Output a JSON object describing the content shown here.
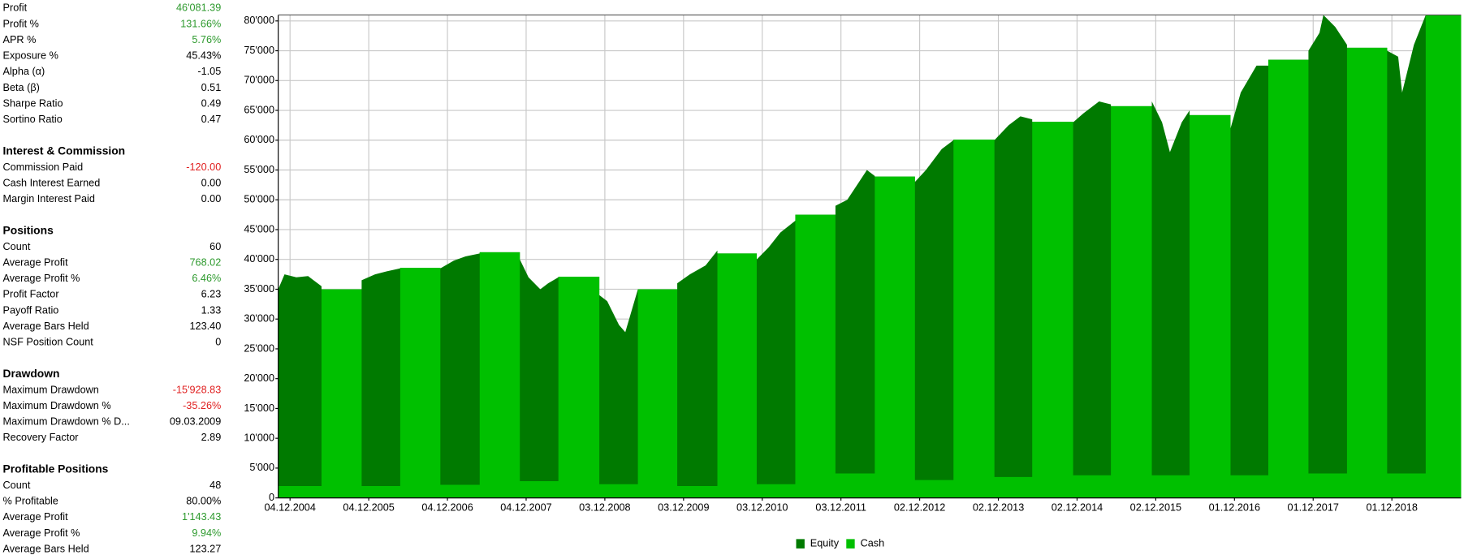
{
  "panel": {
    "sections": [
      {
        "rows": [
          {
            "label": "Profit",
            "value": "46'081.39",
            "color": "#2e9a2e"
          },
          {
            "label": "Profit %",
            "value": "131.66%",
            "color": "#2e9a2e"
          },
          {
            "label": "APR %",
            "value": "5.76%",
            "color": "#2e9a2e"
          },
          {
            "label": "Exposure %",
            "value": "45.43%",
            "color": "#000000"
          },
          {
            "label": "Alpha (α)",
            "value": "-1.05",
            "color": "#000000"
          },
          {
            "label": "Beta (β)",
            "value": "0.51",
            "color": "#000000"
          },
          {
            "label": "Sharpe Ratio",
            "value": "0.49",
            "color": "#000000"
          },
          {
            "label": "Sortino Ratio",
            "value": "0.47",
            "color": "#000000"
          }
        ]
      },
      {
        "title": "Interest & Commission",
        "rows": [
          {
            "label": "Commission Paid",
            "value": "-120.00",
            "color": "#e02020"
          },
          {
            "label": "Cash Interest Earned",
            "value": "0.00",
            "color": "#000000"
          },
          {
            "label": "Margin Interest Paid",
            "value": "0.00",
            "color": "#000000"
          }
        ]
      },
      {
        "title": "Positions",
        "rows": [
          {
            "label": "Count",
            "value": "60",
            "color": "#000000"
          },
          {
            "label": "Average Profit",
            "value": "768.02",
            "color": "#2e9a2e"
          },
          {
            "label": "Average Profit %",
            "value": "6.46%",
            "color": "#2e9a2e"
          },
          {
            "label": "Profit Factor",
            "value": "6.23",
            "color": "#000000"
          },
          {
            "label": "Payoff Ratio",
            "value": "1.33",
            "color": "#000000"
          },
          {
            "label": "Average Bars Held",
            "value": "123.40",
            "color": "#000000"
          },
          {
            "label": "NSF Position Count",
            "value": "0",
            "color": "#000000"
          }
        ]
      },
      {
        "title": "Drawdown",
        "rows": [
          {
            "label": "Maximum Drawdown",
            "value": "-15'928.83",
            "color": "#e02020"
          },
          {
            "label": "Maximum Drawdown %",
            "value": "-35.26%",
            "color": "#e02020"
          },
          {
            "label": "Maximum Drawdown % D...",
            "value": "09.03.2009",
            "color": "#000000"
          },
          {
            "label": "Recovery Factor",
            "value": "2.89",
            "color": "#000000"
          }
        ]
      },
      {
        "title": "Profitable Positions",
        "rows": [
          {
            "label": "Count",
            "value": "48",
            "color": "#000000"
          },
          {
            "label": "% Profitable",
            "value": "80.00%",
            "color": "#000000"
          },
          {
            "label": "Average Profit",
            "value": "1'143.43",
            "color": "#2e9a2e"
          },
          {
            "label": "Average Profit %",
            "value": "9.94%",
            "color": "#2e9a2e"
          },
          {
            "label": "Average Bars Held",
            "value": "123.27",
            "color": "#000000"
          }
        ]
      }
    ]
  },
  "chart_data": {
    "type": "area",
    "grid": true,
    "xlim": [
      2004.77,
      2019.8
    ],
    "ylim": [
      0,
      81000
    ],
    "yticks": [
      {
        "value": 0,
        "label": "0"
      },
      {
        "value": 5000,
        "label": "5'000"
      },
      {
        "value": 10000,
        "label": "10'000"
      },
      {
        "value": 15000,
        "label": "15'000"
      },
      {
        "value": 20000,
        "label": "20'000"
      },
      {
        "value": 25000,
        "label": "25'000"
      },
      {
        "value": 30000,
        "label": "30'000"
      },
      {
        "value": 35000,
        "label": "35'000"
      },
      {
        "value": 40000,
        "label": "40'000"
      },
      {
        "value": 45000,
        "label": "45'000"
      },
      {
        "value": 50000,
        "label": "50'000"
      },
      {
        "value": 55000,
        "label": "55'000"
      },
      {
        "value": 60000,
        "label": "60'000"
      },
      {
        "value": 65000,
        "label": "65'000"
      },
      {
        "value": 70000,
        "label": "70'000"
      },
      {
        "value": 75000,
        "label": "75'000"
      },
      {
        "value": 80000,
        "label": "80'000"
      }
    ],
    "xticks": [
      {
        "value": 2004.92,
        "label": "04.12.2004"
      },
      {
        "value": 2005.92,
        "label": "04.12.2005"
      },
      {
        "value": 2006.92,
        "label": "04.12.2006"
      },
      {
        "value": 2007.92,
        "label": "04.12.2007"
      },
      {
        "value": 2008.92,
        "label": "03.12.2008"
      },
      {
        "value": 2009.92,
        "label": "03.12.2009"
      },
      {
        "value": 2010.92,
        "label": "03.12.2010"
      },
      {
        "value": 2011.92,
        "label": "03.12.2011"
      },
      {
        "value": 2012.92,
        "label": "02.12.2012"
      },
      {
        "value": 2013.92,
        "label": "02.12.2013"
      },
      {
        "value": 2014.92,
        "label": "02.12.2014"
      },
      {
        "value": 2015.92,
        "label": "02.12.2015"
      },
      {
        "value": 2016.92,
        "label": "01.12.2016"
      },
      {
        "value": 2017.92,
        "label": "01.12.2017"
      },
      {
        "value": 2018.92,
        "label": "01.12.2018"
      }
    ],
    "x": [
      2004.77,
      2004.85,
      2005.0,
      2005.15,
      2005.32,
      2005.32,
      2005.83,
      2005.83,
      2006.0,
      2006.15,
      2006.32,
      2006.32,
      2006.83,
      2006.83,
      2007.0,
      2007.15,
      2007.33,
      2007.33,
      2007.84,
      2007.84,
      2007.95,
      2008.1,
      2008.2,
      2008.33,
      2008.33,
      2008.85,
      2008.85,
      2008.95,
      2009.1,
      2009.18,
      2009.34,
      2009.34,
      2009.84,
      2009.84,
      2010.0,
      2010.2,
      2010.35,
      2010.35,
      2010.85,
      2010.85,
      2011.0,
      2011.15,
      2011.34,
      2011.34,
      2011.85,
      2011.85,
      2012.0,
      2012.15,
      2012.25,
      2012.35,
      2012.35,
      2012.86,
      2012.86,
      2013.0,
      2013.2,
      2013.35,
      2013.35,
      2013.87,
      2013.87,
      2014.05,
      2014.2,
      2014.35,
      2014.35,
      2014.87,
      2014.87,
      2015.0,
      2015.2,
      2015.35,
      2015.35,
      2015.87,
      2015.87,
      2016.0,
      2016.1,
      2016.25,
      2016.35,
      2016.35,
      2016.87,
      2016.87,
      2017.0,
      2017.2,
      2017.35,
      2017.35,
      2017.86,
      2017.86,
      2018.0,
      2018.05,
      2018.2,
      2018.35,
      2018.35,
      2018.86,
      2018.86,
      2019.0,
      2019.05,
      2019.2,
      2019.35,
      2019.35,
      2019.8
    ],
    "series": [
      {
        "name": "Equity",
        "color": "#007a00",
        "values": [
          35000,
          37500,
          37000,
          37200,
          35500,
          35000,
          35000,
          36500,
          37500,
          38000,
          38500,
          38600,
          38600,
          38500,
          39800,
          40500,
          41000,
          41200,
          41200,
          40000,
          37000,
          35000,
          36000,
          37000,
          37100,
          37100,
          34000,
          33000,
          29000,
          27800,
          35000,
          35000,
          35000,
          36000,
          37500,
          39000,
          41500,
          41000,
          41000,
          40000,
          42000,
          44500,
          46500,
          47500,
          47500,
          49000,
          50000,
          53000,
          55000,
          54000,
          53900,
          53900,
          53000,
          55000,
          58500,
          60000,
          60100,
          60100,
          60000,
          62500,
          64000,
          63500,
          63100,
          63100,
          63000,
          64500,
          66500,
          66000,
          65700,
          65700,
          66500,
          63000,
          58000,
          63000,
          65000,
          64200,
          64200,
          62000,
          68000,
          72500,
          72500,
          73500,
          73500,
          75000,
          78000,
          81000,
          79000,
          76000,
          75500,
          75500,
          75000,
          74000,
          68000,
          76000,
          81000,
          81000,
          81000
        ]
      },
      {
        "name": "Cash",
        "color": "#00c000",
        "values": [
          2000,
          2000,
          2000,
          2000,
          2000,
          35000,
          35000,
          2000,
          2000,
          2000,
          2000,
          38600,
          38600,
          2200,
          2200,
          2200,
          2200,
          41200,
          41200,
          2800,
          2800,
          2800,
          2800,
          2800,
          37100,
          37100,
          2300,
          2300,
          2300,
          2300,
          2300,
          35000,
          35000,
          2000,
          2000,
          2000,
          2000,
          41000,
          41000,
          2300,
          2300,
          2300,
          2300,
          47500,
          47500,
          4100,
          4100,
          4100,
          4100,
          4100,
          53900,
          53900,
          3000,
          3000,
          3000,
          3000,
          60100,
          60100,
          3500,
          3500,
          3500,
          3500,
          63100,
          63100,
          3800,
          3800,
          3800,
          3800,
          65700,
          65700,
          3800,
          3800,
          3800,
          3800,
          3800,
          64200,
          64200,
          3800,
          3800,
          3800,
          3800,
          73500,
          73500,
          4100,
          4100,
          4100,
          4100,
          4100,
          75500,
          75500,
          4100,
          4100,
          4100,
          4100,
          4100,
          81000,
          81000
        ]
      }
    ]
  }
}
